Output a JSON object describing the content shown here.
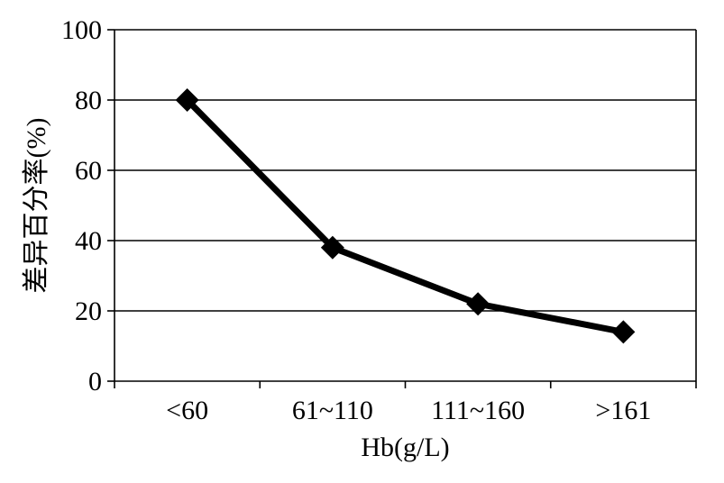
{
  "chart_data": {
    "type": "line",
    "categories": [
      "<60",
      "61~110",
      "111~160",
      ">161"
    ],
    "series": [
      {
        "values": [
          80,
          38,
          22,
          14
        ]
      }
    ],
    "title": "",
    "xlabel": "Hb(g/L)",
    "ylabel": "差异百分率(%)",
    "ylim": [
      0,
      100
    ],
    "yticks": [
      0,
      20,
      40,
      60,
      80,
      100
    ],
    "grid": true,
    "marker": "diamond",
    "line_color": "#000000"
  }
}
